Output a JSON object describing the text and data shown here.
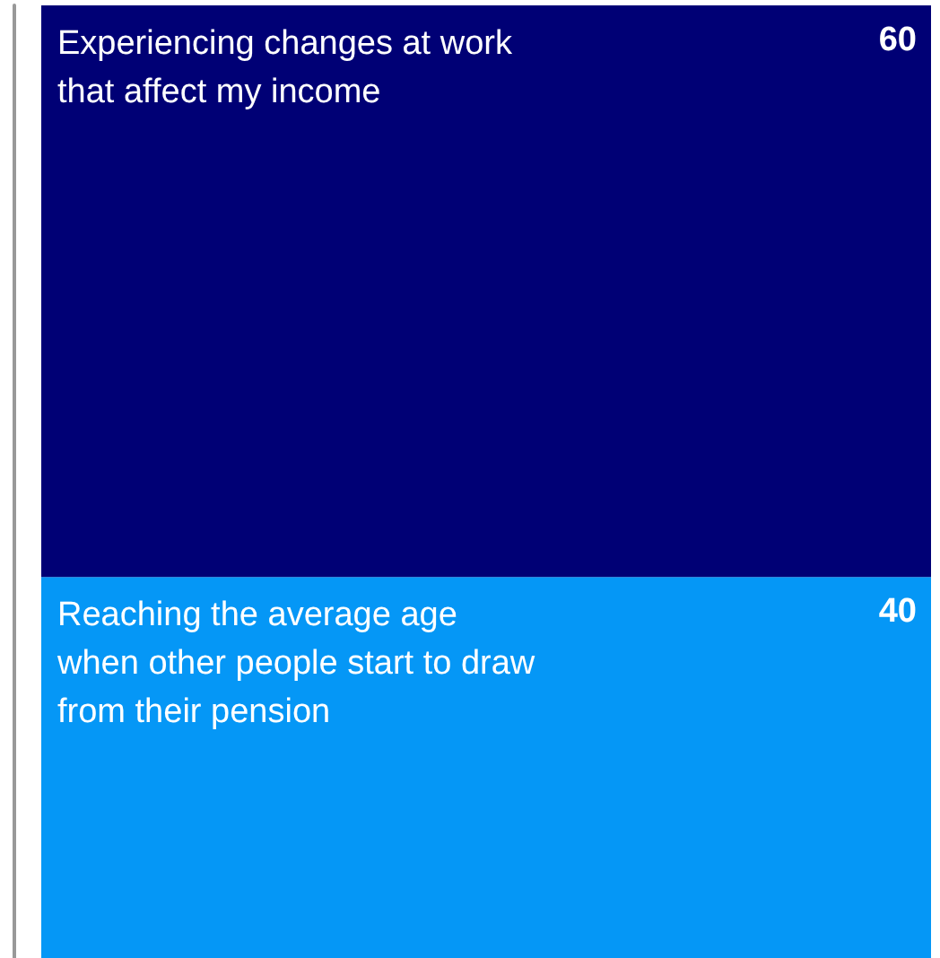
{
  "chart_data": {
    "type": "bar",
    "stacked": true,
    "categories": [
      null
    ],
    "data_labels": true,
    "legend": false,
    "grid": false,
    "series": [
      {
        "name": "Reaching the average age\nwhen other people start to draw\nfrom their pension",
        "color": "#0597f6",
        "values": [
          40
        ]
      },
      {
        "name": "Experiencing changes at work\nthat affect my income",
        "color": "#000075",
        "values": [
          60
        ]
      }
    ]
  }
}
